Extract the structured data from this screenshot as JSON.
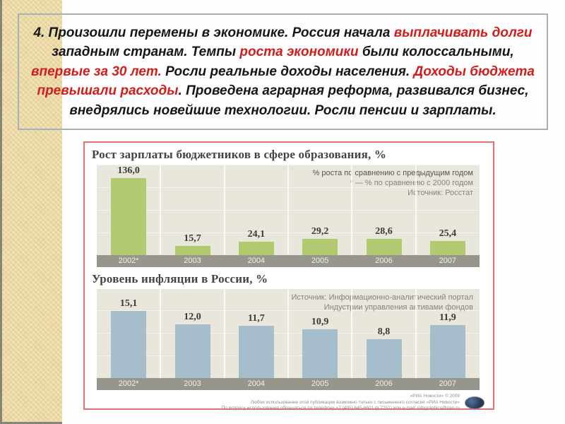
{
  "slide": {
    "text_lines": [
      [
        {
          "t": "4. Произошли перемены в экономике. Россия начала ",
          "red": false
        },
        {
          "t": "выплачивать долги",
          "red": true
        }
      ],
      [
        {
          "t": "западным странам. Темпы ",
          "red": false
        },
        {
          "t": "роста экономики",
          "red": true
        },
        {
          "t": " были колоссальными,",
          "red": false
        }
      ],
      [
        {
          "t": "впервые за 30 лет.",
          "red": true
        },
        {
          "t": " Росли реальные доходы населения. ",
          "red": false
        },
        {
          "t": "Доходы бюджета",
          "red": true
        }
      ],
      [
        {
          "t": "превышали расходы",
          "red": true
        },
        {
          "t": ". Проведена аграрная реформа, развивался бизнес,",
          "red": false
        }
      ],
      [
        {
          "t": "внедрялись новейшие технологии. Росли пенсии и зарплаты.",
          "red": false
        }
      ]
    ],
    "accent_color": "#d21d1d"
  },
  "chart_data": [
    {
      "type": "bar",
      "title": "Рост зарплаты бюджетников в сфере образования, %",
      "categories": [
        "2002*",
        "2003",
        "2004",
        "2005",
        "2006",
        "2007"
      ],
      "values": [
        136.0,
        15.7,
        24.1,
        29.2,
        28.6,
        25.4
      ],
      "value_labels": [
        "136,0",
        "15,7",
        "24,1",
        "29,2",
        "28,6",
        "25,4"
      ],
      "ylim": [
        0,
        160
      ],
      "bar_color": "#b3cb70",
      "legend": [
        "% роста по сравнению с предыдущим годом",
        "* — % по сравнению с 2000 годом",
        "Источник: Росстат"
      ],
      "legend_first_line_bold": true,
      "legend_position": "top-right",
      "grid": true
    },
    {
      "type": "bar",
      "title": "Уровень инфляции в России, %",
      "categories": [
        "2002*",
        "2003",
        "2004",
        "2005",
        "2006",
        "2007"
      ],
      "values": [
        15.1,
        12.0,
        11.7,
        10.9,
        8.8,
        11.9
      ],
      "value_labels": [
        "15,1",
        "12,0",
        "11,7",
        "10,9",
        "8,8",
        "11,9"
      ],
      "ylim": [
        0,
        20
      ],
      "bar_color": "#a6bdcc",
      "legend": [
        "Источник: Информационно-аналитический портал",
        "Индустрии управления активами фондов"
      ],
      "legend_first_line_bold": false,
      "legend_position": "top-right",
      "grid": true
    }
  ],
  "footer": {
    "copyright": "«РИА Новости» © 2009",
    "usage_line": "Любое использование этой публикации возможно только с письменного согласия «РИА Новости»",
    "contact_line": "По вопросу использования обращаться по телефону +7 (495) 645-6601 (в 7251) или e-mail: infographics@rian.ru",
    "logo": "ria-novosti-globe"
  },
  "colors": {
    "panel_border": "#e2736c",
    "plot_background": "#e9e6dc",
    "axis_band": "#98968c",
    "side_strip": "#ecd9a2",
    "salary_bars": "#b3cb70",
    "inflation_bars": "#a6bdcc"
  }
}
